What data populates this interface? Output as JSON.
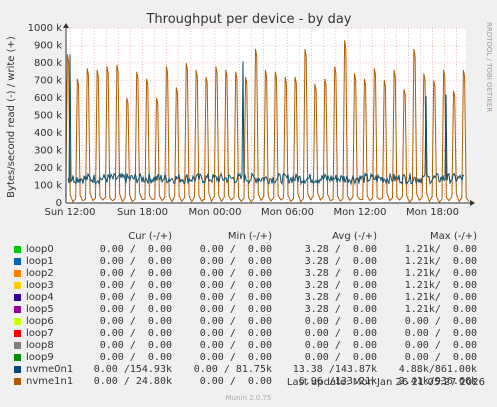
{
  "chart_data": {
    "type": "line",
    "title": "Throughput per device - by day",
    "ylabel": "Bytes/second read (-) / write (+)",
    "watermark": "RRDTOOL / TOBI OETIKER",
    "ylim": [
      0,
      1000000
    ],
    "y_ticks": [
      "0",
      "100 k",
      "200 k",
      "300 k",
      "400 k",
      "500 k",
      "600 k",
      "700 k",
      "800 k",
      "900 k",
      "1000 k"
    ],
    "x_ticks": [
      "Sun 12:00",
      "Sun 18:00",
      "Mon 00:00",
      "Mon 06:00",
      "Mon 12:00",
      "Mon 18:00"
    ],
    "grid": true,
    "series": [
      {
        "name": "nvme1n1",
        "color": "#b35a00",
        "description_values": "periodic write spikes",
        "spikes": [
          850000,
          710000,
          770000,
          760000,
          780000,
          790000,
          600000,
          750000,
          710000,
          600000,
          780000,
          660000,
          800000,
          760000,
          720000,
          780000,
          760000,
          750000,
          720000,
          880000,
          760000,
          750000,
          720000,
          720000,
          880000,
          680000,
          710000,
          780000,
          930000,
          740000,
          710000,
          770000,
          700000,
          760000,
          650000,
          880000,
          740000,
          700000,
          760000,
          640000,
          760000
        ]
      },
      {
        "name": "nvme0n1",
        "color": "#0b4f6c",
        "baseline": 140000,
        "peaks": [
          850000,
          810000,
          610000,
          620000
        ]
      }
    ]
  },
  "legend": {
    "headers": {
      "cur": "Cur (-/+)",
      "min": "Min (-/+)",
      "avg": "Avg (-/+)",
      "max": "Max (-/+)"
    },
    "rows": [
      {
        "name": "loop0",
        "color": "#00cc00",
        "cur": "0.00 /  0.00",
        "min": "0.00 /  0.00",
        "avg": "3.28 /  0.00",
        "max": "1.21k/  0.00"
      },
      {
        "name": "loop1",
        "color": "#0066b3",
        "cur": "0.00 /  0.00",
        "min": "0.00 /  0.00",
        "avg": "3.28 /  0.00",
        "max": "1.21k/  0.00"
      },
      {
        "name": "loop2",
        "color": "#ff8000",
        "cur": "0.00 /  0.00",
        "min": "0.00 /  0.00",
        "avg": "3.28 /  0.00",
        "max": "1.21k/  0.00"
      },
      {
        "name": "loop3",
        "color": "#ffcc00",
        "cur": "0.00 /  0.00",
        "min": "0.00 /  0.00",
        "avg": "3.28 /  0.00",
        "max": "1.21k/  0.00"
      },
      {
        "name": "loop4",
        "color": "#330099",
        "cur": "0.00 /  0.00",
        "min": "0.00 /  0.00",
        "avg": "3.28 /  0.00",
        "max": "1.21k/  0.00"
      },
      {
        "name": "loop5",
        "color": "#990099",
        "cur": "0.00 /  0.00",
        "min": "0.00 /  0.00",
        "avg": "3.28 /  0.00",
        "max": "1.21k/  0.00"
      },
      {
        "name": "loop6",
        "color": "#ccff00",
        "cur": "0.00 /  0.00",
        "min": "0.00 /  0.00",
        "avg": "0.00 /  0.00",
        "max": "0.00 /  0.00"
      },
      {
        "name": "loop7",
        "color": "#ff0000",
        "cur": "0.00 /  0.00",
        "min": "0.00 /  0.00",
        "avg": "0.00 /  0.00",
        "max": "0.00 /  0.00"
      },
      {
        "name": "loop8",
        "color": "#808080",
        "cur": "0.00 /  0.00",
        "min": "0.00 /  0.00",
        "avg": "0.00 /  0.00",
        "max": "0.00 /  0.00"
      },
      {
        "name": "loop9",
        "color": "#008f00",
        "cur": "0.00 /  0.00",
        "min": "0.00 /  0.00",
        "avg": "0.00 /  0.00",
        "max": "0.00 /  0.00"
      },
      {
        "name": "nvme0n1",
        "color": "#00487d",
        "cur": "0.00 /154.93k",
        "min": "0.00 / 81.75k",
        "avg": "13.38 /143.87k",
        "max": "4.88k/861.00k"
      },
      {
        "name": "nvme1n1",
        "color": "#b35a00",
        "cur": "0.00 / 24.80k",
        "min": "0.00 /  0.00",
        "avg": "6.96 /133.21k",
        "max": "2.41k/936.66k"
      }
    ]
  },
  "last_update": "Last update: Mon Jan 26 21:05:27 2026",
  "footer": "Munin 2.0.75"
}
